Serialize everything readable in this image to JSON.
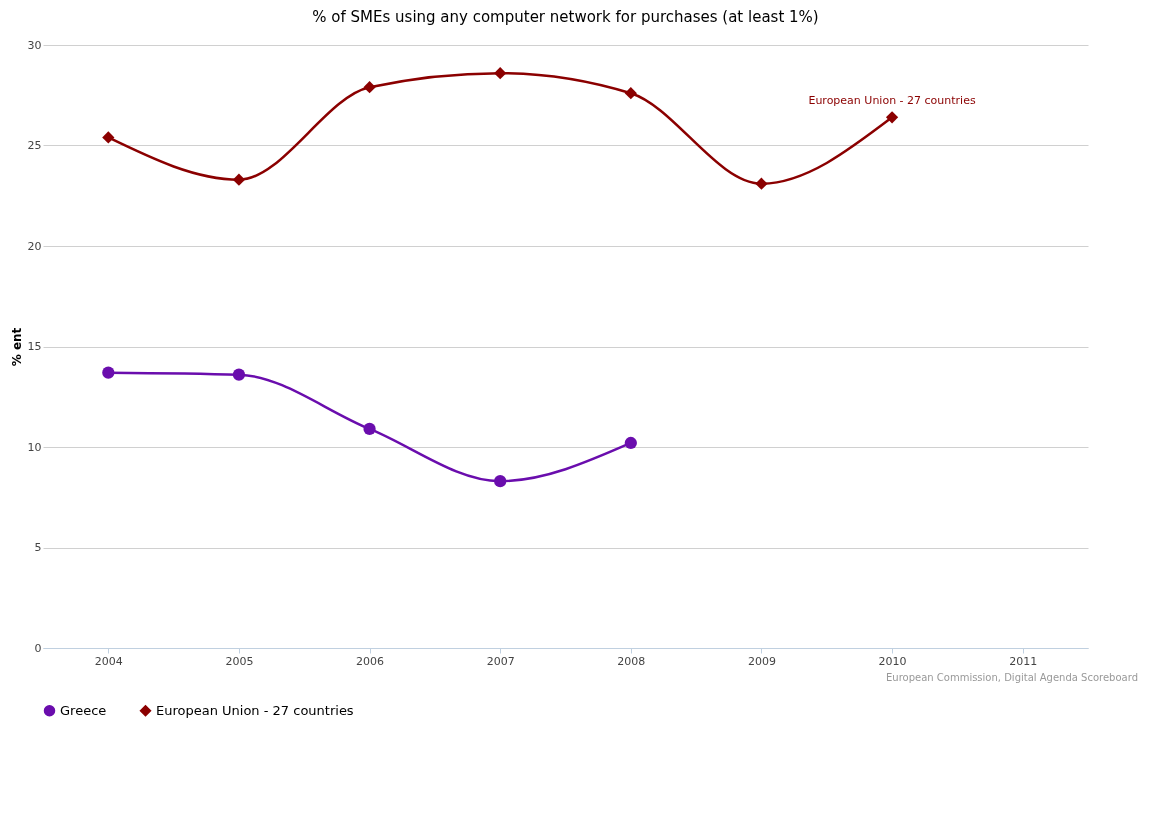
{
  "chart_data": {
    "type": "line",
    "title": "% of SMEs using any computer network for purchases (at least 1%)",
    "ylabel": "% ent",
    "x": [
      2004,
      2005,
      2006,
      2007,
      2008,
      2009,
      2010
    ],
    "series": [
      {
        "name": "Greece",
        "color": "#6a0dad",
        "marker": "circle",
        "values": [
          13.7,
          13.6,
          10.9,
          8.3,
          10.2,
          null,
          null
        ]
      },
      {
        "name": "European Union - 27 countries",
        "color": "#8b0000",
        "marker": "diamond",
        "values": [
          25.4,
          23.3,
          27.9,
          28.6,
          27.6,
          23.1,
          26.4
        ]
      }
    ],
    "xlim": [
      2003.5,
      2011.5
    ],
    "xticks": [
      2004,
      2005,
      2006,
      2007,
      2008,
      2009,
      2010,
      2011
    ],
    "ylim": [
      0,
      30
    ],
    "yticks": [
      0,
      5,
      10,
      15,
      20,
      25,
      30
    ],
    "grid": "y",
    "legend": "bottom",
    "annotations": [
      {
        "text": "European Union - 27 countries",
        "x": 2010,
        "y": 26.4
      },
      "European Commission, Digital Agenda Scoreboard"
    ]
  }
}
